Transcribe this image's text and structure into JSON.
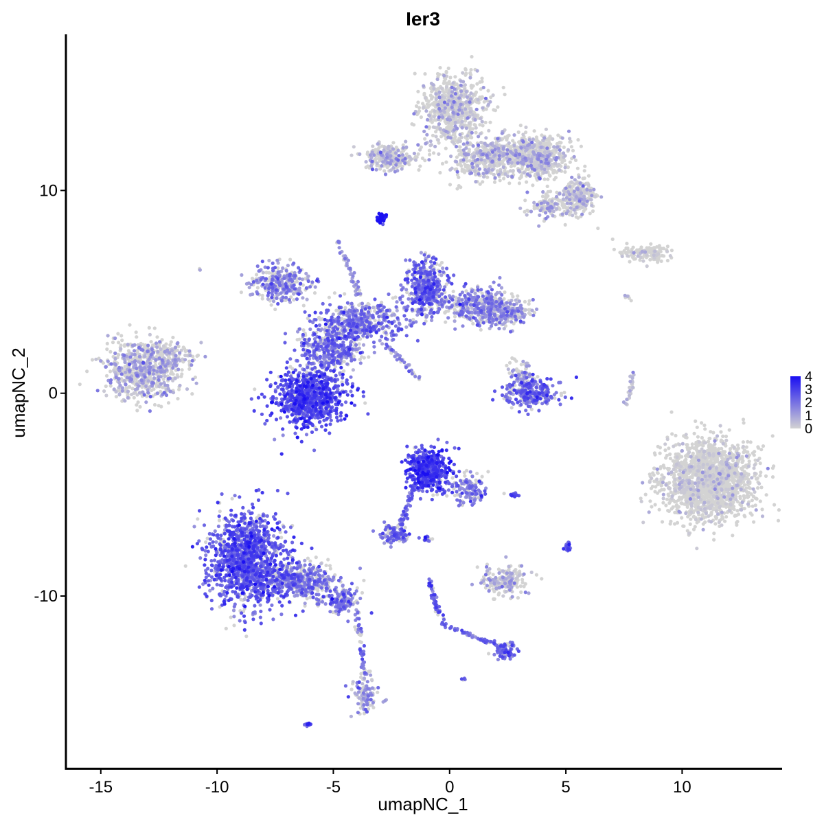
{
  "chart_data": {
    "type": "scatter",
    "title": "Ier3",
    "xlabel": "umapNC_1",
    "ylabel": "umapNC_2",
    "xlim": [
      -16.5,
      14.3
    ],
    "ylim": [
      -18.5,
      17.7
    ],
    "x_ticks": [
      -15,
      -10,
      -5,
      0,
      5,
      10
    ],
    "y_ticks": [
      -10,
      0,
      10
    ],
    "grid": false,
    "color_scale": {
      "low_color": "#d3d3d3",
      "high_color": "#1a0ff2",
      "min": 0,
      "max": 4,
      "ticks": [
        0,
        1,
        2,
        3,
        4
      ],
      "legend_position": "right"
    },
    "point_color_default": "#d3d3d3",
    "clusters": [
      {
        "cx": -13.2,
        "cy": 1.1,
        "sx": 1.1,
        "sy": 1.0,
        "n": 650,
        "expr": 0.9
      },
      {
        "cx": -12.0,
        "cy": 1.8,
        "sx": 0.6,
        "sy": 0.5,
        "n": 120,
        "expr": 0.8
      },
      {
        "cx": -6.0,
        "cy": -0.2,
        "sx": 1.0,
        "sy": 0.9,
        "n": 900,
        "expr": 2.6
      },
      {
        "cx": -5.2,
        "cy": 2.2,
        "sx": 0.9,
        "sy": 0.8,
        "n": 400,
        "expr": 2.0
      },
      {
        "cx": -7.2,
        "cy": 5.4,
        "sx": 0.8,
        "sy": 0.6,
        "n": 300,
        "expr": 1.6
      },
      {
        "cx": -3.8,
        "cy": 3.5,
        "sx": 1.2,
        "sy": 0.7,
        "n": 450,
        "expr": 1.9
      },
      {
        "cx": -1.0,
        "cy": 5.2,
        "sx": 0.6,
        "sy": 0.9,
        "n": 450,
        "expr": 2.1
      },
      {
        "cx": 1.2,
        "cy": 4.3,
        "sx": 1.0,
        "sy": 0.6,
        "n": 350,
        "expr": 1.6
      },
      {
        "cx": 2.4,
        "cy": 4.0,
        "sx": 0.7,
        "sy": 0.5,
        "n": 220,
        "expr": 1.3
      },
      {
        "cx": 3.5,
        "cy": 0.0,
        "sx": 0.8,
        "sy": 0.5,
        "n": 250,
        "expr": 2.2
      },
      {
        "cx": 3.1,
        "cy": 0.9,
        "sx": 0.35,
        "sy": 0.5,
        "n": 90,
        "expr": 1.4
      },
      {
        "cx": -0.9,
        "cy": -3.8,
        "sx": 0.6,
        "sy": 0.7,
        "n": 420,
        "expr": 2.8
      },
      {
        "cx": 0.8,
        "cy": -4.8,
        "sx": 0.5,
        "sy": 0.5,
        "n": 120,
        "expr": 1.9
      },
      {
        "cx": -2.4,
        "cy": -7.0,
        "sx": 0.4,
        "sy": 0.3,
        "n": 110,
        "expr": 2.1
      },
      {
        "cx": -8.7,
        "cy": -8.3,
        "sx": 1.1,
        "sy": 1.5,
        "n": 1300,
        "expr": 2.4
      },
      {
        "cx": -6.3,
        "cy": -9.3,
        "sx": 1.0,
        "sy": 0.6,
        "n": 450,
        "expr": 1.8
      },
      {
        "cx": -4.6,
        "cy": -10.3,
        "sx": 0.5,
        "sy": 0.4,
        "n": 140,
        "expr": 1.7
      },
      {
        "cx": -3.6,
        "cy": -14.8,
        "sx": 0.35,
        "sy": 0.7,
        "n": 110,
        "expr": 1.3
      },
      {
        "cx": 2.4,
        "cy": -9.3,
        "sx": 0.6,
        "sy": 0.5,
        "n": 200,
        "expr": 0.8
      },
      {
        "cx": 2.4,
        "cy": -12.7,
        "sx": 0.35,
        "sy": 0.3,
        "n": 60,
        "expr": 2.2
      },
      {
        "cx": 0.2,
        "cy": 14.0,
        "sx": 0.9,
        "sy": 1.1,
        "n": 700,
        "expr": 0.5
      },
      {
        "cx": 1.5,
        "cy": 11.5,
        "sx": 0.9,
        "sy": 0.7,
        "n": 350,
        "expr": 0.7
      },
      {
        "cx": 3.7,
        "cy": 11.7,
        "sx": 1.0,
        "sy": 0.7,
        "n": 600,
        "expr": 0.6
      },
      {
        "cx": 5.5,
        "cy": 9.7,
        "sx": 0.5,
        "sy": 0.6,
        "n": 250,
        "expr": 0.7
      },
      {
        "cx": -2.6,
        "cy": 11.6,
        "sx": 0.8,
        "sy": 0.45,
        "n": 250,
        "expr": 0.8
      },
      {
        "cx": 4.2,
        "cy": 9.2,
        "sx": 0.6,
        "sy": 0.4,
        "n": 110,
        "expr": 0.9
      },
      {
        "cx": 11.1,
        "cy": -4.3,
        "sx": 1.3,
        "sy": 1.3,
        "n": 1700,
        "expr": 0.15
      },
      {
        "cx": 8.5,
        "cy": 6.9,
        "sx": 0.7,
        "sy": 0.25,
        "n": 130,
        "expr": 0.2
      },
      {
        "cx": -2.9,
        "cy": 8.6,
        "sx": 0.15,
        "sy": 0.15,
        "n": 35,
        "expr": 3.8
      },
      {
        "cx": 5.1,
        "cy": -7.6,
        "sx": 0.12,
        "sy": 0.2,
        "n": 25,
        "expr": 2.6
      },
      {
        "cx": -6.1,
        "cy": -16.3,
        "sx": 0.1,
        "sy": 0.06,
        "n": 10,
        "expr": 2.8
      },
      {
        "cx": -1.0,
        "cy": -7.2,
        "sx": 0.2,
        "sy": 0.1,
        "n": 15,
        "expr": 2.4
      },
      {
        "cx": 2.8,
        "cy": -5.0,
        "sx": 0.25,
        "sy": 0.08,
        "n": 15,
        "expr": 2.6
      },
      {
        "cx": -10.7,
        "cy": 6.1,
        "sx": 0.05,
        "sy": 0.05,
        "n": 3,
        "expr": 1.0
      },
      {
        "cx": 0.6,
        "cy": -14.1,
        "sx": 0.06,
        "sy": 0.05,
        "n": 5,
        "expr": 2.0
      }
    ],
    "trails": [
      {
        "x1": -4.8,
        "y1": 7.5,
        "x2": -3.9,
        "y2": 4.8,
        "n": 45,
        "expr": 1.3
      },
      {
        "x1": -2.8,
        "y1": 2.5,
        "x2": -1.3,
        "y2": 0.7,
        "n": 40,
        "expr": 1.4
      },
      {
        "x1": -1.5,
        "y1": -4.5,
        "x2": -2.1,
        "y2": -6.5,
        "n": 55,
        "expr": 2.1
      },
      {
        "x1": -4.0,
        "y1": -10.8,
        "x2": -3.6,
        "y2": -14.0,
        "n": 45,
        "expr": 2.0
      },
      {
        "x1": -0.9,
        "y1": -9.3,
        "x2": -0.3,
        "y2": -11.4,
        "n": 45,
        "expr": 2.3
      },
      {
        "x1": -0.3,
        "y1": -11.4,
        "x2": 2.2,
        "y2": -12.5,
        "n": 60,
        "expr": 2.0
      },
      {
        "x1": 7.9,
        "y1": 1.0,
        "x2": 7.6,
        "y2": -0.6,
        "n": 25,
        "expr": 0.5
      },
      {
        "x1": 1.6,
        "y1": 10.8,
        "x2": 2.3,
        "y2": 13.0,
        "n": 35,
        "expr": 0.6
      },
      {
        "x1": 7.6,
        "y1": 4.9,
        "x2": 7.9,
        "y2": 4.4,
        "n": 6,
        "expr": 0.1
      }
    ]
  }
}
